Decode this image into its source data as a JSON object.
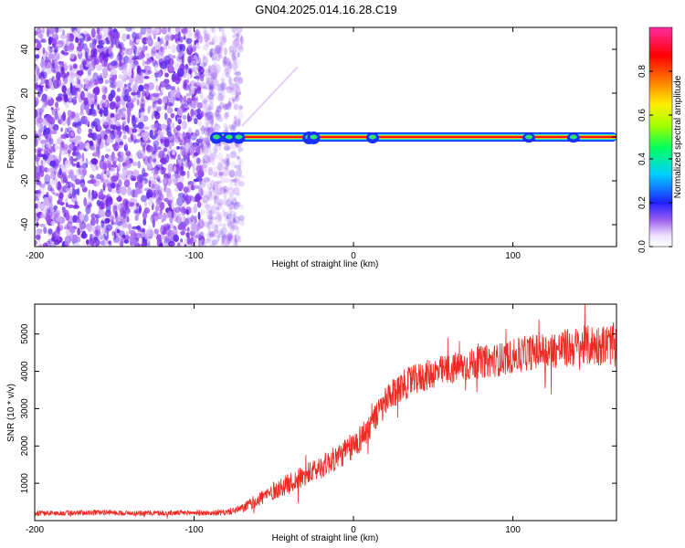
{
  "title": "GN04.2025.014.16.28.C19",
  "chart_data": [
    {
      "type": "heatmap",
      "xlabel": "Height of straight line (km)",
      "ylabel": "Frequency (Hz)",
      "xlim": [
        -200,
        165
      ],
      "ylim": [
        -50,
        50
      ],
      "xticks": [
        -200,
        -100,
        0,
        100
      ],
      "yticks": [
        -40,
        -20,
        0,
        20,
        40
      ],
      "colorbar": {
        "label": "Normalized spectral amplitude",
        "range": [
          0,
          1
        ],
        "ticks": [
          "0.0",
          "0.2",
          "0.4",
          "0.6",
          "0.8"
        ],
        "colors": [
          "#ffffff",
          "#e8d8ff",
          "#8a3cf0",
          "#2a2aff",
          "#00c8ff",
          "#00ff66",
          "#b8ff00",
          "#ffee00",
          "#ff6600",
          "#ff0000",
          "#ff2aa0"
        ]
      },
      "features": {
        "noise_region_x": [
          -200,
          -70
        ],
        "carrier_frequency_hz": 0,
        "carrier_start_x": -88,
        "carrier_amplitude": 1.0
      }
    },
    {
      "type": "line",
      "xlabel": "Height of straight line (km)",
      "ylabel": "SNR (10 * v/v)",
      "xlim": [
        -200,
        165
      ],
      "ylim": [
        0,
        5800
      ],
      "xticks": [
        -200,
        -100,
        0,
        100
      ],
      "yticks": [
        1000,
        2000,
        3000,
        4000,
        5000
      ],
      "series": [
        {
          "color": "#ee2a24",
          "x": [
            -200,
            -180,
            -160,
            -140,
            -120,
            -100,
            -90,
            -80,
            -70,
            -60,
            -50,
            -40,
            -30,
            -20,
            -10,
            0,
            10,
            20,
            30,
            40,
            50,
            60,
            70,
            80,
            90,
            100,
            110,
            120,
            130,
            140,
            150,
            160,
            165
          ],
          "y": [
            200,
            200,
            220,
            200,
            200,
            210,
            200,
            220,
            320,
            560,
            800,
            1000,
            1200,
            1450,
            1700,
            2000,
            2500,
            3150,
            3600,
            3800,
            3950,
            4050,
            4150,
            4250,
            4300,
            4400,
            4500,
            4550,
            4600,
            4650,
            4700,
            4720,
            4750
          ],
          "noise_amplitude": [
            70,
            70,
            70,
            70,
            70,
            70,
            70,
            80,
            120,
            200,
            250,
            280,
            300,
            320,
            350,
            380,
            400,
            420,
            420,
            420,
            420,
            430,
            430,
            440,
            450,
            460,
            480,
            500,
            520,
            550,
            560,
            560,
            560
          ]
        }
      ]
    }
  ]
}
